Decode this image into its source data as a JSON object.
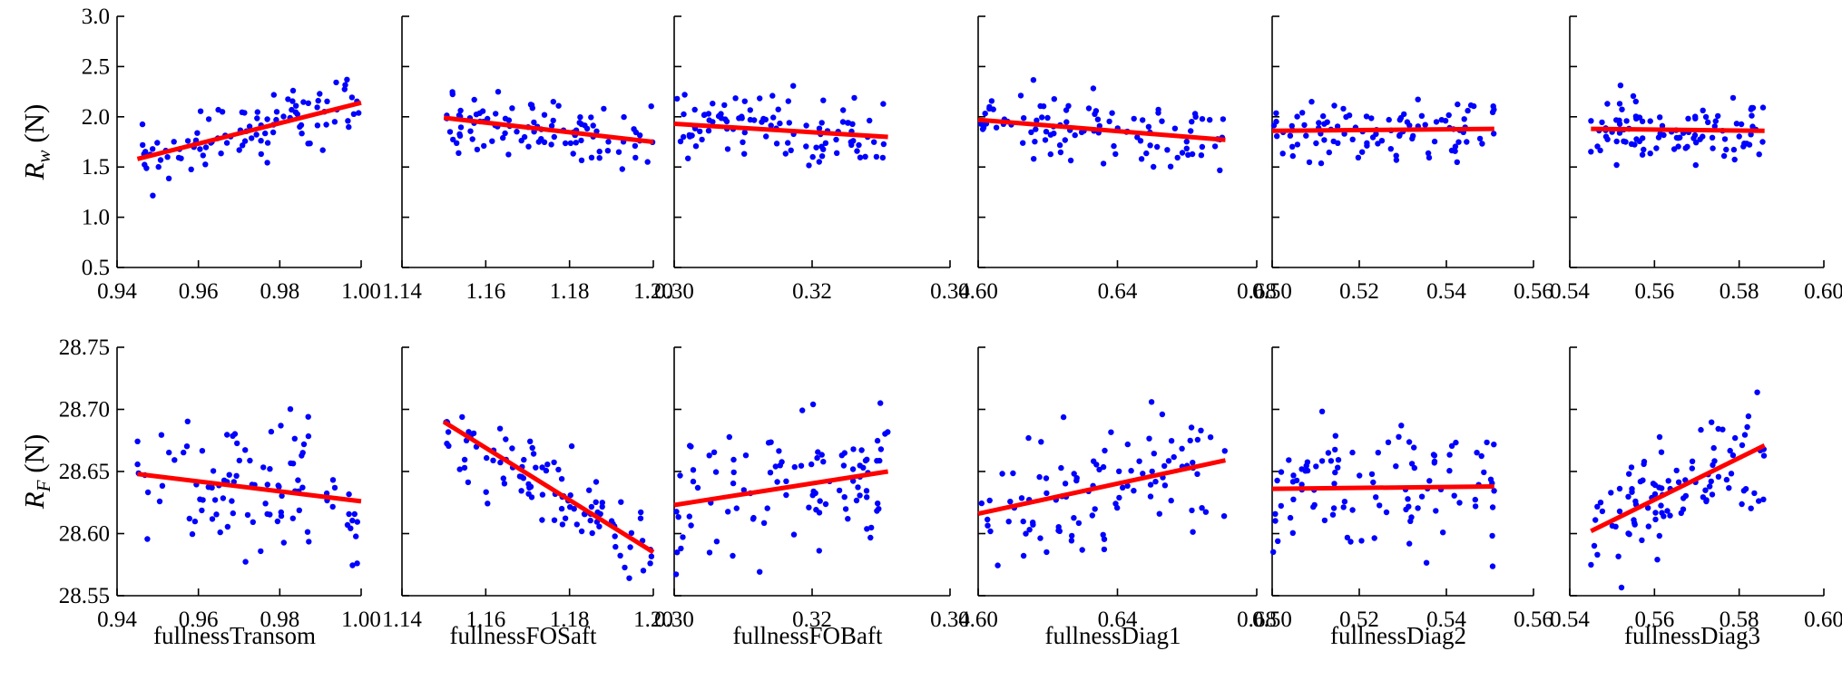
{
  "chart_data": {
    "type": "scatter",
    "description_rows": [
      "top",
      "bottom"
    ],
    "colors": {
      "points": "#0000ff",
      "fit_line": "#ff0000",
      "axes": "#000000"
    },
    "x_variables": [
      {
        "name": "fullnessTransom",
        "xlim": [
          0.94,
          1.0
        ],
        "xticks": [
          "0.94",
          "0.96",
          "0.98",
          "1.00"
        ]
      },
      {
        "name": "fullnessFOSaft",
        "xlim": [
          1.14,
          1.2
        ],
        "xticks": [
          "1.14",
          "1.16",
          "1.18",
          "1.20"
        ]
      },
      {
        "name": "fullnessFOBaft",
        "xlim": [
          0.3,
          0.34
        ],
        "xticks": [
          "0.30",
          "0.32",
          "0.34"
        ]
      },
      {
        "name": "fullnessDiag1",
        "xlim": [
          0.6,
          0.68
        ],
        "xticks": [
          "0.60",
          "0.64",
          "0.68"
        ]
      },
      {
        "name": "fullnessDiag2",
        "xlim": [
          0.5,
          0.56
        ],
        "xticks": [
          "0.50",
          "0.52",
          "0.54",
          "0.56"
        ]
      },
      {
        "name": "fullnessDiag3",
        "xlim": [
          0.54,
          0.6
        ],
        "xticks": [
          "0.54",
          "0.56",
          "0.58",
          "0.60"
        ]
      }
    ],
    "rows": [
      {
        "ylabel_main": "R",
        "ylabel_sub": "w",
        "ylabel_unit": " (N)",
        "ylim": [
          0.5,
          3.0
        ],
        "yticks": [
          "0.5",
          "1.0",
          "1.5",
          "2.0",
          "2.5",
          "3.0"
        ],
        "panels": [
          {
            "data_xrange": [
              0.945,
              1.0
            ],
            "fit": [
              [
                0.945,
                1.58
              ],
              [
                1.0,
                2.14
              ]
            ],
            "spread": 0.23,
            "seed": 11
          },
          {
            "data_xrange": [
              1.15,
              1.2
            ],
            "fit": [
              [
                1.15,
                1.99
              ],
              [
                1.2,
                1.75
              ]
            ],
            "spread": 0.25,
            "seed": 23
          },
          {
            "data_xrange": [
              0.3,
              0.331
            ],
            "fit": [
              [
                0.3,
                1.93
              ],
              [
                0.331,
                1.8
              ]
            ],
            "spread": 0.25,
            "seed": 37
          },
          {
            "data_xrange": [
              0.6,
              0.671
            ],
            "fit": [
              [
                0.6,
                1.97
              ],
              [
                0.671,
                1.77
              ]
            ],
            "spread": 0.25,
            "seed": 41
          },
          {
            "data_xrange": [
              0.5,
              0.551
            ],
            "fit": [
              [
                0.5,
                1.86
              ],
              [
                0.551,
                1.88
              ]
            ],
            "spread": 0.25,
            "seed": 53
          },
          {
            "data_xrange": [
              0.545,
              0.586
            ],
            "fit": [
              [
                0.545,
                1.88
              ],
              [
                0.586,
                1.86
              ]
            ],
            "spread": 0.25,
            "seed": 67
          }
        ]
      },
      {
        "ylabel_main": "R",
        "ylabel_sub": "F",
        "ylabel_unit": " (N)",
        "ylim": [
          28.55,
          28.75
        ],
        "yticks": [
          "28.55",
          "28.60",
          "28.65",
          "28.70",
          "28.75"
        ],
        "panels": [
          {
            "data_xrange": [
              0.945,
              1.0
            ],
            "fit": [
              [
                0.945,
                28.648
              ],
              [
                1.0,
                28.626
              ]
            ],
            "spread": 0.04,
            "seed": 71
          },
          {
            "data_xrange": [
              1.15,
              1.2
            ],
            "fit": [
              [
                1.15,
                28.69
              ],
              [
                1.2,
                28.585
              ]
            ],
            "spread": 0.025,
            "seed": 83
          },
          {
            "data_xrange": [
              0.3,
              0.331
            ],
            "fit": [
              [
                0.3,
                28.623
              ],
              [
                0.331,
                28.65
              ]
            ],
            "spread": 0.04,
            "seed": 97
          },
          {
            "data_xrange": [
              0.6,
              0.671
            ],
            "fit": [
              [
                0.6,
                28.616
              ],
              [
                0.671,
                28.659
              ]
            ],
            "spread": 0.04,
            "seed": 101
          },
          {
            "data_xrange": [
              0.5,
              0.551
            ],
            "fit": [
              [
                0.5,
                28.636
              ],
              [
                0.551,
                28.638
              ]
            ],
            "spread": 0.04,
            "seed": 113
          },
          {
            "data_xrange": [
              0.545,
              0.586
            ],
            "fit": [
              [
                0.545,
                28.602
              ],
              [
                0.586,
                28.671
              ]
            ],
            "spread": 0.035,
            "seed": 127
          }
        ]
      }
    ],
    "points_per_panel": 100
  }
}
